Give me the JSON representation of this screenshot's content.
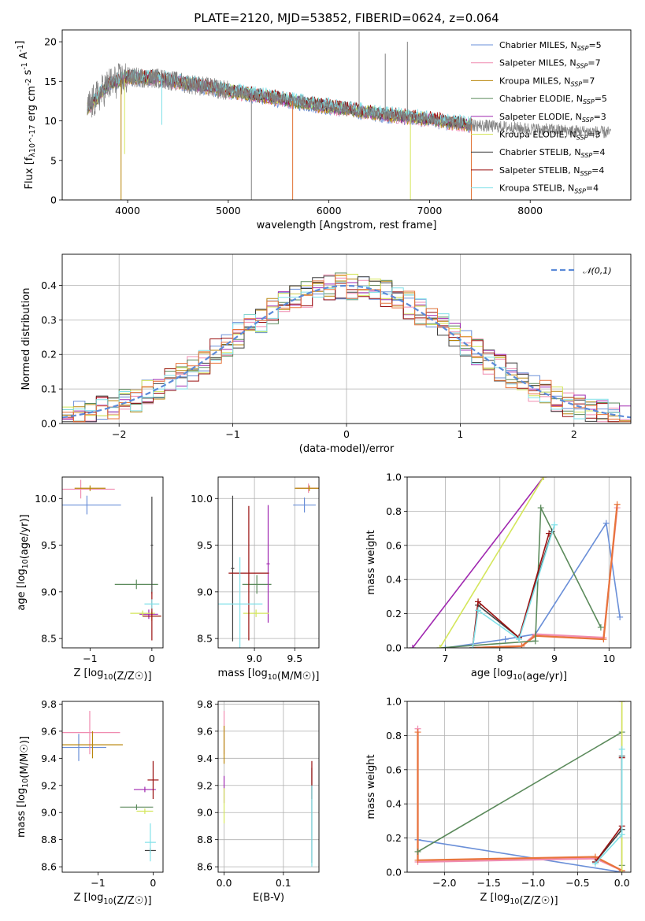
{
  "figure": {
    "title": "PLATE=2120, MJD=53852, FIBERID=0624, z=0.064"
  },
  "legend": [
    {
      "name": "Chabrier MILES",
      "n_label": "N",
      "n_sub": "SSP",
      "n_value": "=5",
      "color": "#6a8fd8"
    },
    {
      "name": "Salpeter MILES",
      "n_label": "N",
      "n_sub": "SSP",
      "n_value": "=7",
      "color": "#f08cb0"
    },
    {
      "name": "Kroupa MILES",
      "n_label": "N",
      "n_sub": "SSP",
      "n_value": "=7",
      "color": "#b8860b"
    },
    {
      "name": "Chabrier ELODIE",
      "n_label": "N",
      "n_sub": "SSP",
      "n_value": "=5",
      "color": "#5b8a5b"
    },
    {
      "name": "Salpeter ELODIE",
      "n_label": "N",
      "n_sub": "SSP",
      "n_value": "=3",
      "color": "#a028b0"
    },
    {
      "name": "Kroupa ELODIE",
      "n_label": "N",
      "n_sub": "SSP",
      "n_value": "=3",
      "color": "#d4e65a"
    },
    {
      "name": "Chabrier STELIB",
      "n_label": "N",
      "n_sub": "SSP",
      "n_value": "=4",
      "color": "#404040"
    },
    {
      "name": "Salpeter STELIB",
      "n_label": "N",
      "n_sub": "SSP",
      "n_value": "=4",
      "color": "#9a1010"
    },
    {
      "name": "Kroupa STELIB",
      "n_label": "N",
      "n_sub": "SSP",
      "n_value": "=4",
      "color": "#80e0e8"
    }
  ],
  "chart_data": [
    {
      "id": "spectrum",
      "type": "line",
      "title": "PLATE=2120, MJD=53852, FIBERID=0624, z=0.064",
      "xlabel": "wavelength [Angstrom, rest frame]",
      "ylabel": "Flux [f_λ10^-17 erg cm^-2 s^-1 A^-1]",
      "xlim": [
        3350,
        9000
      ],
      "ylim": [
        0,
        21.5
      ],
      "xticks": [
        4000,
        5000,
        6000,
        7000,
        8000
      ],
      "yticks": [
        0,
        5,
        10,
        15,
        20
      ],
      "data_color": "#808080",
      "continuum": {
        "x": [
          3600,
          3800,
          4000,
          4300,
          4700,
          5000,
          5500,
          6000,
          6500,
          7000,
          7400,
          8000,
          8800
        ],
        "y": [
          11.5,
          14.5,
          15.5,
          15.4,
          14.5,
          13.8,
          12.8,
          11.8,
          10.9,
          10.2,
          9.5,
          9.0,
          8.5
        ]
      },
      "spikes": [
        {
          "x": 3935,
          "y": 0,
          "color": "#b8860b"
        },
        {
          "x": 3970,
          "y": 5.8,
          "color": "#d4e65a"
        },
        {
          "x": 4340,
          "y": 9.5,
          "color": "#80e0e8"
        },
        {
          "x": 5230,
          "y": 0,
          "color": "#808080"
        },
        {
          "x": 5640,
          "y": 0,
          "color": "#e07030"
        },
        {
          "x": 6300,
          "y": 21.3,
          "color": "#808080"
        },
        {
          "x": 6560,
          "y": 18.5,
          "color": "#808080"
        },
        {
          "x": 6780,
          "y": 20.0,
          "color": "#808080"
        },
        {
          "x": 6810,
          "y": 0,
          "color": "#d4e65a"
        },
        {
          "x": 7415,
          "y": 0,
          "color": "#e07030"
        }
      ]
    },
    {
      "id": "residuals",
      "type": "line",
      "xlabel": "(data-model)/error",
      "ylabel": "Normed distribution",
      "xlim": [
        -2.5,
        2.5
      ],
      "ylim": [
        0,
        0.49
      ],
      "xticks": [
        -2,
        -1,
        0,
        1,
        2
      ],
      "yticks": [
        0.0,
        0.1,
        0.2,
        0.3,
        0.4
      ],
      "gaussian": {
        "name": "𝒩(0,1)",
        "mean": 0,
        "sigma": 1,
        "color": "#5b8ad8"
      },
      "bin_width": 0.1
    },
    {
      "id": "age-Z",
      "type": "scatter",
      "xlabel": "Z [log10(Z/Z☉)]",
      "ylabel": "age [log10(age/yr)]",
      "xlim": [
        -1.45,
        0.18
      ],
      "ylim": [
        8.4,
        10.23
      ],
      "xticks": [
        -1,
        0
      ],
      "yticks": [
        8.5,
        9.0,
        9.5,
        10.0
      ],
      "points": [
        {
          "series": "Chabrier MILES",
          "x": -1.05,
          "y": 9.93,
          "xerr": 0.55,
          "yerr": 0.1
        },
        {
          "series": "Salpeter MILES",
          "x": -1.15,
          "y": 10.1,
          "xerr": 0.55,
          "yerr": 0.1
        },
        {
          "series": "Kroupa MILES",
          "x": -1.0,
          "y": 10.11,
          "xerr": 0.25,
          "yerr": 0.03
        },
        {
          "series": "Kroupa MILES",
          "x": 0.0,
          "y": 8.74,
          "xerr": 0.15,
          "yerr": 0.05
        },
        {
          "series": "Chabrier ELODIE",
          "x": -0.25,
          "y": 9.08,
          "xerr": 0.35,
          "yerr": 0.05
        },
        {
          "series": "Salpeter ELODIE",
          "x": -0.05,
          "y": 8.76,
          "xerr": 0.15,
          "yerr": 0.05
        },
        {
          "series": "Kroupa ELODIE",
          "x": -0.15,
          "y": 8.77,
          "xerr": 0.2,
          "yerr": 0.03
        },
        {
          "series": "Chabrier STELIB",
          "x": 0.0,
          "y": 9.5,
          "xerr": 0.02,
          "yerr": 0.52
        },
        {
          "series": "Salpeter STELIB",
          "x": 0.0,
          "y": 8.74,
          "xerr": 0.15,
          "yerr": 0.26
        },
        {
          "series": "Kroupa STELIB",
          "x": 0.0,
          "y": 8.87,
          "xerr": 0.12,
          "yerr": 0.05
        }
      ]
    },
    {
      "id": "age-mass",
      "type": "scatter",
      "xlabel": "mass [log10(M/M☉)]",
      "ylabel": "",
      "xlim": [
        8.55,
        9.8
      ],
      "ylim": [
        8.4,
        10.23
      ],
      "xticks": [
        9.0,
        9.5
      ],
      "yticks": [
        8.5,
        9.0,
        9.5,
        10.0
      ],
      "points": [
        {
          "series": "Chabrier MILES",
          "x": 9.62,
          "y": 9.93,
          "xerr": 0.14,
          "yerr": 0.08
        },
        {
          "series": "Salpeter MILES",
          "x": 9.67,
          "y": 10.11,
          "xerr": 0.15,
          "yerr": 0.05
        },
        {
          "series": "Kroupa MILES",
          "x": 9.68,
          "y": 10.11,
          "xerr": 0.18,
          "yerr": 0.03
        },
        {
          "series": "Chabrier ELODIE",
          "x": 9.03,
          "y": 9.08,
          "xerr": 0.18,
          "yerr": 0.1
        },
        {
          "series": "Salpeter ELODIE",
          "x": 9.17,
          "y": 9.3,
          "xerr": 0.02,
          "yerr": 0.63
        },
        {
          "series": "Kroupa ELODIE",
          "x": 9.02,
          "y": 8.77,
          "xerr": 0.16,
          "yerr": 0.04
        },
        {
          "series": "Chabrier STELIB",
          "x": 8.73,
          "y": 9.25,
          "xerr": 0.02,
          "yerr": 0.78
        },
        {
          "series": "Salpeter STELIB",
          "x": 8.93,
          "y": 9.2,
          "xerr": 0.25,
          "yerr": 0.72
        },
        {
          "series": "Kroupa STELIB",
          "x": 8.82,
          "y": 8.87,
          "xerr": 0.28,
          "yerr": 0.5
        }
      ]
    },
    {
      "id": "weight-age",
      "type": "line",
      "xlabel": "age [log10(age/yr)]",
      "ylabel": "mass weight",
      "xlim": [
        6.3,
        10.4
      ],
      "ylim": [
        0,
        1.0
      ],
      "xticks": [
        7,
        8,
        9,
        10
      ],
      "yticks": [
        0.0,
        0.2,
        0.4,
        0.6,
        0.8,
        1.0
      ],
      "series": [
        {
          "name": "Chabrier MILES",
          "x": [
            7.0,
            8.1,
            8.65,
            9.95,
            10.2
          ],
          "y": [
            0.0,
            0.05,
            0.08,
            0.73,
            0.18
          ]
        },
        {
          "name": "Salpeter MILES",
          "x": [
            7.5,
            8.4,
            8.65,
            9.9,
            10.15
          ],
          "y": [
            0.0,
            0.01,
            0.08,
            0.06,
            0.82
          ]
        },
        {
          "name": "Kroupa MILES",
          "x": [
            7.5,
            8.4,
            8.65,
            9.9,
            10.15
          ],
          "y": [
            0.0,
            0.01,
            0.07,
            0.05,
            0.84
          ]
        },
        {
          "name": "Chabrier ELODIE",
          "x": [
            6.9,
            8.65,
            8.75,
            9.85
          ],
          "y": [
            0.0,
            0.04,
            0.82,
            0.12
          ]
        },
        {
          "name": "Salpeter ELODIE",
          "x": [
            6.4,
            8.8
          ],
          "y": [
            0.0,
            1.0
          ]
        },
        {
          "name": "Kroupa ELODIE",
          "x": [
            6.9,
            8.8
          ],
          "y": [
            0.0,
            1.0
          ]
        },
        {
          "name": "Chabrier STELIB",
          "x": [
            7.5,
            7.6,
            8.35,
            8.95
          ],
          "y": [
            0.0,
            0.25,
            0.06,
            0.68
          ]
        },
        {
          "name": "Salpeter STELIB",
          "x": [
            7.5,
            7.6,
            8.35,
            8.9
          ],
          "y": [
            0.0,
            0.27,
            0.06,
            0.67
          ]
        },
        {
          "name": "Kroupa STELIB",
          "x": [
            7.5,
            7.6,
            8.35,
            9.0
          ],
          "y": [
            0.0,
            0.22,
            0.05,
            0.72
          ]
        }
      ]
    },
    {
      "id": "mass-Z",
      "type": "scatter",
      "xlabel": "Z [log10(Z/Z☉)]",
      "ylabel": "mass [log10(M/M☉)]",
      "xlim": [
        -1.65,
        0.18
      ],
      "ylim": [
        8.56,
        9.82
      ],
      "xticks": [
        -1,
        0
      ],
      "yticks": [
        8.6,
        8.8,
        9.0,
        9.2,
        9.4,
        9.6,
        9.8
      ],
      "points": [
        {
          "series": "Chabrier MILES",
          "x": -1.35,
          "y": 9.48,
          "xerr": 0.5,
          "yerr": 0.1
        },
        {
          "series": "Salpeter MILES",
          "x": -1.15,
          "y": 9.59,
          "xerr": 0.55,
          "yerr": 0.16
        },
        {
          "series": "Kroupa MILES",
          "x": -1.1,
          "y": 9.5,
          "xerr": 0.55,
          "yerr": 0.1
        },
        {
          "series": "Chabrier ELODIE",
          "x": -0.3,
          "y": 9.04,
          "xerr": 0.3,
          "yerr": 0.02
        },
        {
          "series": "Salpeter ELODIE",
          "x": -0.15,
          "y": 9.17,
          "xerr": 0.2,
          "yerr": 0.02
        },
        {
          "series": "Kroupa ELODIE",
          "x": -0.15,
          "y": 9.01,
          "xerr": 0.15,
          "yerr": 0.02
        },
        {
          "series": "Chabrier STELIB",
          "x": -0.05,
          "y": 8.72,
          "xerr": 0.1,
          "yerr": 0.02
        },
        {
          "series": "Salpeter STELIB",
          "x": 0.0,
          "y": 9.24,
          "xerr": 0.1,
          "yerr": 0.14
        },
        {
          "series": "Kroupa STELIB",
          "x": -0.05,
          "y": 8.78,
          "xerr": 0.1,
          "yerr": 0.14
        }
      ]
    },
    {
      "id": "mass-EBV",
      "type": "scatter",
      "xlabel": "E(B-V)",
      "ylabel": "",
      "xlim": [
        -0.01,
        0.16
      ],
      "ylim": [
        8.56,
        9.82
      ],
      "xticks": [
        0.0,
        0.1
      ],
      "yticks": [
        8.6,
        8.8,
        9.0,
        9.2,
        9.4,
        9.6,
        9.8
      ],
      "points": [
        {
          "series": "Salpeter MILES",
          "x": 0.0,
          "y": 9.59,
          "xerr": 0.0,
          "yerr": 0.16
        },
        {
          "series": "Kroupa MILES",
          "x": 0.0,
          "y": 9.5,
          "xerr": 0.0,
          "yerr": 0.14
        },
        {
          "series": "Salpeter ELODIE",
          "x": 0.0,
          "y": 9.17,
          "xerr": 0.0,
          "yerr": 0.1
        },
        {
          "series": "Kroupa ELODIE",
          "x": 0.0,
          "y": 9.05,
          "xerr": 0.0,
          "yerr": 0.13
        },
        {
          "series": "Chabrier STELIB",
          "x": 0.148,
          "y": 8.98,
          "xerr": 0.0,
          "yerr": 0.35
        },
        {
          "series": "Salpeter STELIB",
          "x": 0.148,
          "y": 9.24,
          "xerr": 0.0,
          "yerr": 0.14
        },
        {
          "series": "Kroupa STELIB",
          "x": 0.148,
          "y": 8.9,
          "xerr": 0.0,
          "yerr": 0.3
        }
      ]
    },
    {
      "id": "weight-Z",
      "type": "line",
      "xlabel": "Z [log10(Z/Z☉)]",
      "ylabel": "mass weight",
      "xlim": [
        -2.42,
        0.1
      ],
      "ylim": [
        0,
        1.0
      ],
      "xticks": [
        -2.0,
        -1.5,
        -1.0,
        -0.5,
        0.0
      ],
      "yticks": [
        0.0,
        0.2,
        0.4,
        0.6,
        0.8,
        1.0
      ],
      "series": [
        {
          "name": "Chabrier MILES",
          "x": [
            -2.3,
            0.0
          ],
          "y": [
            0.19,
            0.0
          ]
        },
        {
          "name": "Salpeter MILES",
          "x": [
            -2.3,
            -2.3,
            -0.3,
            0.0,
            0.0
          ],
          "y": [
            0.84,
            0.06,
            0.08,
            0.01,
            0.0
          ]
        },
        {
          "name": "Kroupa MILES",
          "x": [
            -2.3,
            -2.3,
            -0.3,
            0.0,
            0.0
          ],
          "y": [
            0.82,
            0.07,
            0.09,
            0.01,
            0.0
          ]
        },
        {
          "name": "Chabrier ELODIE",
          "x": [
            -2.3,
            0.0,
            0.0
          ],
          "y": [
            0.12,
            0.82,
            0.04
          ]
        },
        {
          "name": "Salpeter ELODIE",
          "x": [
            0.0,
            0.0
          ],
          "y": [
            0.0,
            1.0
          ]
        },
        {
          "name": "Kroupa ELODIE",
          "x": [
            0.0,
            0.0
          ],
          "y": [
            0.0,
            1.0
          ]
        },
        {
          "name": "Chabrier STELIB",
          "x": [
            -0.3,
            0.0,
            0.0
          ],
          "y": [
            0.06,
            0.25,
            0.68
          ]
        },
        {
          "name": "Salpeter STELIB",
          "x": [
            -0.3,
            0.0,
            0.0
          ],
          "y": [
            0.06,
            0.27,
            0.67
          ]
        },
        {
          "name": "Kroupa STELIB",
          "x": [
            -0.3,
            0.0,
            0.0
          ],
          "y": [
            0.05,
            0.22,
            0.72
          ]
        }
      ]
    }
  ]
}
